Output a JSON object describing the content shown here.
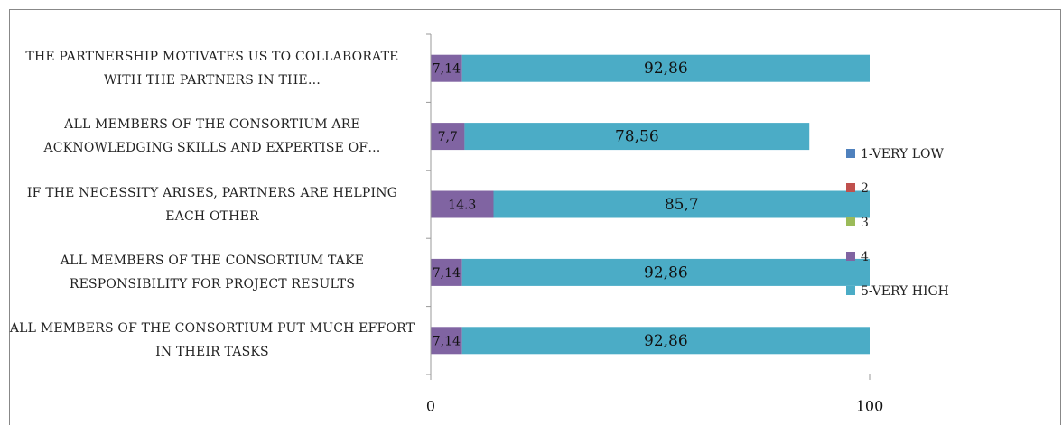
{
  "chart_data": {
    "type": "stacked_barh",
    "categories": [
      "THE PARTNERSHIP MOTIVATES US TO COLLABORATE WITH THE PARTNERS IN THE…",
      "ALL MEMBERS OF THE CONSORTIUM ARE ACKNOWLEDGING SKILLS AND EXPERTISE OF…",
      "IF THE NECESSITY ARISES, PARTNERS ARE HELPING EACH OTHER",
      "ALL MEMBERS OF THE CONSORTIUM TAKE RESPONSIBILITY FOR PROJECT RESULTS",
      "ALL MEMBERS OF THE CONSORTIUM PUT MUCH EFFORT IN THEIR TASKS"
    ],
    "series": [
      {
        "name": "1-VERY LOW",
        "color": "#4f81bd",
        "values": [
          0,
          0,
          0,
          0,
          0
        ]
      },
      {
        "name": "2",
        "color": "#c0504d",
        "values": [
          0,
          0,
          0,
          0,
          0
        ]
      },
      {
        "name": "3",
        "color": "#9bbb59",
        "values": [
          0,
          0,
          0,
          0,
          0
        ]
      },
      {
        "name": "4",
        "color": "#8064a2",
        "values": [
          7.14,
          7.7,
          14.3,
          7.14,
          7.14
        ],
        "value_labels": [
          "7,14",
          "7,7",
          "14.3",
          "7,14",
          "7,14"
        ]
      },
      {
        "name": "5-VERY HIGH",
        "color": "#4bacc6",
        "values": [
          92.86,
          78.56,
          85.7,
          92.86,
          92.86
        ],
        "value_labels": [
          "92,86",
          "78,56",
          "85,7",
          "92,86",
          "92,86"
        ]
      }
    ],
    "xlim": [
      0,
      100
    ],
    "xticks": [
      0,
      100
    ],
    "legend": "right"
  }
}
